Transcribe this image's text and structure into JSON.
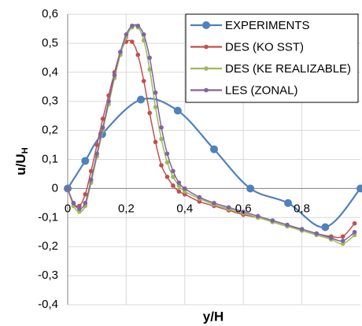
{
  "chart_data": {
    "type": "line",
    "xlabel": "y/H",
    "ylabel": "u/U",
    "ylabel_sub": "H",
    "xlim": [
      0,
      1
    ],
    "ylim": [
      -0.4,
      0.6
    ],
    "xticks": [
      0,
      {
        "value": 0.2,
        "label": "0,2"
      },
      {
        "value": 0.4,
        "label": "0,4"
      },
      {
        "value": 0.6,
        "label": "0,6"
      },
      {
        "value": 0.8,
        "label": "0,8"
      }
    ],
    "yticks": [
      {
        "value": -0.4,
        "label": "-0,4"
      },
      {
        "value": -0.3,
        "label": "-0,3"
      },
      {
        "value": -0.2,
        "label": "-0,2"
      },
      {
        "value": -0.1,
        "label": "-0,1"
      },
      0,
      {
        "value": 0.1,
        "label": "0,1"
      },
      {
        "value": 0.2,
        "label": "0,2"
      },
      {
        "value": 0.3,
        "label": "0,3"
      },
      {
        "value": 0.4,
        "label": "0,4"
      },
      {
        "value": 0.5,
        "label": "0,5"
      },
      {
        "value": 0.6,
        "label": "0,6"
      }
    ],
    "grid": true,
    "legend": "upper right",
    "series": [
      {
        "name": "EXPERIMENTS",
        "color": "#4f81bd",
        "marker_size": 5,
        "x": [
          0,
          0.06,
          0.118,
          0.25,
          0.376,
          0.5,
          0.624,
          0.753,
          0.88,
          1.0
        ],
        "values": [
          0,
          0.095,
          0.187,
          0.306,
          0.268,
          0.135,
          0,
          -0.05,
          -0.133,
          0
        ]
      },
      {
        "name": "DES (KO SST)",
        "color": "#c0504d",
        "marker_size": 2.8,
        "x": [
          0,
          0.02,
          0.04,
          0.06,
          0.08,
          0.1,
          0.12,
          0.14,
          0.16,
          0.18,
          0.2,
          0.22,
          0.24,
          0.26,
          0.28,
          0.3,
          0.32,
          0.34,
          0.36,
          0.38,
          0.4,
          0.45,
          0.5,
          0.55,
          0.6,
          0.65,
          0.7,
          0.75,
          0.8,
          0.85,
          0.9,
          0.94,
          0.98
        ],
        "values": [
          0,
          -0.05,
          -0.06,
          -0.02,
          0.06,
          0.15,
          0.24,
          0.32,
          0.4,
          0.47,
          0.505,
          0.505,
          0.46,
          0.37,
          0.26,
          0.16,
          0.08,
          0.04,
          0.01,
          -0.01,
          -0.02,
          -0.045,
          -0.06,
          -0.075,
          -0.09,
          -0.1,
          -0.115,
          -0.13,
          -0.14,
          -0.155,
          -0.165,
          -0.165,
          -0.12
        ]
      },
      {
        "name": "DES (KE REALIZABLE)",
        "color": "#9bbb59",
        "marker_size": 2.8,
        "x": [
          0,
          0.02,
          0.04,
          0.06,
          0.08,
          0.1,
          0.12,
          0.14,
          0.16,
          0.18,
          0.2,
          0.22,
          0.24,
          0.26,
          0.28,
          0.3,
          0.32,
          0.34,
          0.36,
          0.38,
          0.4,
          0.45,
          0.5,
          0.55,
          0.6,
          0.65,
          0.7,
          0.75,
          0.8,
          0.85,
          0.9,
          0.94,
          0.98
        ],
        "values": [
          0,
          -0.06,
          -0.08,
          -0.06,
          0.02,
          0.11,
          0.2,
          0.29,
          0.38,
          0.46,
          0.52,
          0.555,
          0.555,
          0.51,
          0.41,
          0.28,
          0.17,
          0.09,
          0.04,
          0.01,
          -0.01,
          -0.035,
          -0.055,
          -0.07,
          -0.085,
          -0.1,
          -0.115,
          -0.13,
          -0.145,
          -0.16,
          -0.175,
          -0.19,
          -0.16
        ]
      },
      {
        "name": "LES (ZONAL)",
        "color": "#8064a2",
        "marker_size": 2.8,
        "x": [
          0,
          0.02,
          0.04,
          0.06,
          0.08,
          0.1,
          0.12,
          0.14,
          0.16,
          0.18,
          0.2,
          0.22,
          0.24,
          0.26,
          0.28,
          0.3,
          0.32,
          0.34,
          0.36,
          0.38,
          0.4,
          0.45,
          0.5,
          0.55,
          0.6,
          0.65,
          0.7,
          0.75,
          0.8,
          0.85,
          0.9,
          0.94,
          0.98
        ],
        "values": [
          0,
          -0.05,
          -0.07,
          -0.05,
          0.03,
          0.12,
          0.21,
          0.3,
          0.39,
          0.47,
          0.53,
          0.56,
          0.56,
          0.53,
          0.45,
          0.33,
          0.21,
          0.12,
          0.06,
          0.02,
          0,
          -0.03,
          -0.05,
          -0.065,
          -0.08,
          -0.095,
          -0.11,
          -0.125,
          -0.14,
          -0.155,
          -0.17,
          -0.18,
          -0.15
        ]
      }
    ]
  }
}
